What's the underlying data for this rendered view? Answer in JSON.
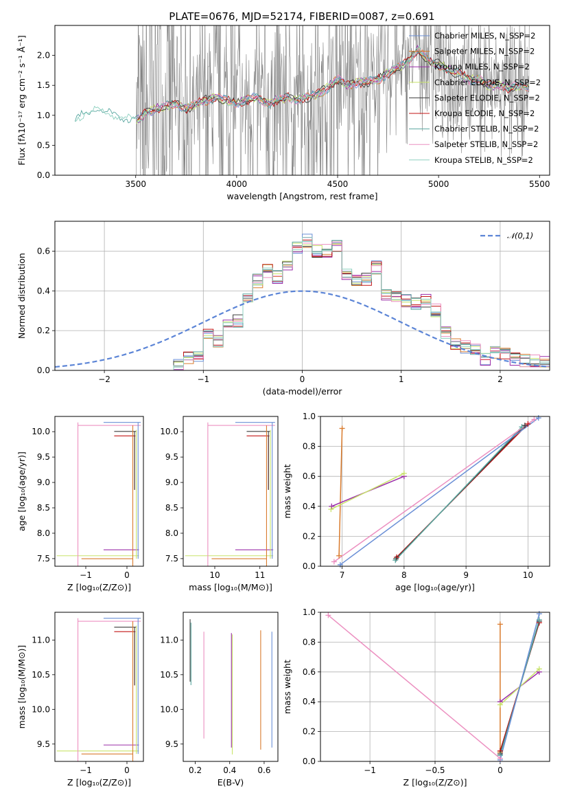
{
  "figure": {
    "title": "PLATE=0676, MJD=52174, FIBERID=0087, z=0.691"
  },
  "colors": {
    "grid": "#b0b0b0",
    "data": "#808080",
    "gaussian": "#5b84d6",
    "models": [
      "#6a8fd6",
      "#d97a2c",
      "#9a2ca8",
      "#c8e46a",
      "#3c3c3c",
      "#c21414",
      "#5aa7a0",
      "#ec8fc0",
      "#8dd0c0"
    ]
  },
  "chart_data": [
    {
      "id": "spectrum",
      "type": "line",
      "title": "PLATE=0676, MJD=52174, FIBERID=0087, z=0.691",
      "xlabel": "wavelength [Angstrom, rest frame]",
      "ylabel": "Flux [fλ10⁻¹⁷ erg cm⁻² s⁻¹ Å⁻¹]",
      "xlim": [
        3100,
        5550
      ],
      "ylim": [
        0,
        2.5
      ],
      "xticks": [
        3500,
        4000,
        4500,
        5000,
        5500
      ],
      "yticks": [
        0.0,
        0.5,
        1.0,
        1.5,
        2.0
      ],
      "legend_position": "upper-right",
      "series": [
        {
          "name": "Chabrier MILES, N_SSP=2"
        },
        {
          "name": "Salpeter MILES, N_SSP=2"
        },
        {
          "name": "Kroupa MILES, N_SSP=2"
        },
        {
          "name": "Chabrier ELODIE, N_SSP=2"
        },
        {
          "name": "Salpeter ELODIE, N_SSP=2"
        },
        {
          "name": "Kroupa ELODIE, N_SSP=2"
        },
        {
          "name": "Chabrier STELIB, N_SSP=2"
        },
        {
          "name": "Salpeter STELIB, N_SSP=2"
        },
        {
          "name": "Kroupa STELIB, N_SSP=2"
        }
      ],
      "model_curve": {
        "x": [
          3200,
          3250,
          3300,
          3350,
          3400,
          3450,
          3500,
          3550,
          3600,
          3650,
          3700,
          3750,
          3800,
          3850,
          3900,
          3950,
          4000,
          4050,
          4100,
          4150,
          4200,
          4250,
          4300,
          4350,
          4400,
          4450,
          4500,
          4550,
          4600,
          4650,
          4700,
          4750,
          4800,
          4850,
          4900,
          4950,
          5000,
          5050,
          5100,
          5150,
          5200,
          5250,
          5300,
          5350,
          5400,
          5450
        ],
        "y": [
          0.9,
          1.05,
          1.1,
          1.05,
          1.0,
          0.95,
          0.9,
          1.05,
          1.1,
          1.15,
          1.2,
          1.1,
          1.2,
          1.25,
          1.3,
          1.25,
          1.2,
          1.25,
          1.3,
          1.2,
          1.25,
          1.3,
          1.25,
          1.3,
          1.35,
          1.45,
          1.6,
          1.5,
          1.55,
          1.55,
          1.6,
          1.7,
          1.8,
          1.9,
          2.1,
          1.9,
          1.85,
          1.75,
          1.7,
          1.6,
          1.6,
          1.5,
          1.5,
          1.45,
          1.5,
          1.45
        ]
      },
      "data_start": 3500
    },
    {
      "id": "residuals",
      "type": "line",
      "xlabel": "(data-model)/error",
      "ylabel": "Normed distribution",
      "xlim": [
        -2.5,
        2.5
      ],
      "ylim": [
        0,
        0.75
      ],
      "xticks": [
        -2,
        -1,
        0,
        1,
        2
      ],
      "yticks": [
        0.0,
        0.2,
        0.4,
        0.6
      ],
      "legend": "𝒩(0,1)",
      "legend_position": "upper-right",
      "bin_edges": [
        -1.3,
        -1.2,
        -1.1,
        -1.0,
        -0.9,
        -0.8,
        -0.7,
        -0.6,
        -0.5,
        -0.4,
        -0.3,
        -0.2,
        -0.1,
        0.0,
        0.1,
        0.2,
        0.3,
        0.4,
        0.5,
        0.6,
        0.7,
        0.8,
        0.9,
        1.0,
        1.1,
        1.2,
        1.3,
        1.4,
        1.5,
        1.6,
        1.7,
        1.8,
        1.9,
        2.0,
        2.1,
        2.2,
        2.3,
        2.4,
        2.5
      ],
      "values": [
        0.02,
        0.06,
        0.07,
        0.18,
        0.15,
        0.22,
        0.25,
        0.35,
        0.45,
        0.5,
        0.47,
        0.53,
        0.62,
        0.65,
        0.6,
        0.6,
        0.63,
        0.48,
        0.45,
        0.46,
        0.52,
        0.38,
        0.37,
        0.35,
        0.33,
        0.35,
        0.3,
        0.19,
        0.14,
        0.12,
        0.11,
        0.06,
        0.09,
        0.08,
        0.06,
        0.05,
        0.05,
        0.04
      ]
    },
    {
      "id": "age-vs-z",
      "type": "scatter",
      "xlabel": "Z [log₁₀(Z/Z⊙)]",
      "ylabel": "age  [log₁₀(age/yr)]",
      "xlim": [
        -1.75,
        0.4
      ],
      "ylim": [
        7.35,
        10.3
      ],
      "xticks": [
        -1,
        0
      ],
      "yticks": [
        7.5,
        8.0,
        8.5,
        9.0,
        9.5,
        10.0
      ]
    },
    {
      "id": "age-vs-mass",
      "type": "scatter",
      "xlabel": "mass [log₁₀(M/M⊙)]",
      "xlim": [
        9.3,
        11.4
      ],
      "ylim": [
        7.35,
        10.3
      ],
      "xticks": [
        10,
        11
      ],
      "yticks": [
        7.5,
        8.0,
        8.5,
        9.0,
        9.5,
        10.0
      ]
    },
    {
      "id": "weight-vs-age",
      "type": "line",
      "xlabel": "age  [log₁₀(age/yr)]",
      "ylabel": "mass weight",
      "xlim": [
        6.65,
        10.35
      ],
      "ylim": [
        0,
        1
      ],
      "xticks": [
        7,
        8,
        9,
        10
      ],
      "yticks": [
        0.0,
        0.2,
        0.4,
        0.6,
        0.8,
        1.0
      ],
      "series": [
        {
          "color_index": 1,
          "x": [
            6.95,
            7.0
          ],
          "y": [
            0.07,
            0.92
          ]
        },
        {
          "color_index": 2,
          "x": [
            6.83,
            8.0
          ],
          "y": [
            0.4,
            0.6
          ]
        },
        {
          "color_index": 3,
          "x": [
            6.82,
            8.0
          ],
          "y": [
            0.38,
            0.62
          ]
        },
        {
          "color_index": 5,
          "x": [
            7.88,
            10.0
          ],
          "y": [
            0.06,
            0.95
          ]
        },
        {
          "color_index": 4,
          "x": [
            7.87,
            9.95
          ],
          "y": [
            0.05,
            0.94
          ]
        },
        {
          "color_index": 6,
          "x": [
            7.86,
            9.9
          ],
          "y": [
            0.04,
            0.93
          ]
        },
        {
          "color_index": 0,
          "x": [
            6.97,
            10.17
          ],
          "y": [
            0.01,
            0.99
          ]
        },
        {
          "color_index": 7,
          "x": [
            6.87,
            10.1
          ],
          "y": [
            0.03,
            0.98
          ]
        }
      ]
    },
    {
      "id": "mass-vs-z",
      "type": "scatter",
      "xlabel": "Z [log₁₀(Z/Z⊙)]",
      "ylabel": "mass [log₁₀(M/M⊙)]",
      "xlim": [
        -1.75,
        0.4
      ],
      "ylim": [
        9.25,
        11.4
      ],
      "xticks": [
        -1,
        0
      ],
      "yticks": [
        9.5,
        10.0,
        10.5,
        11.0
      ]
    },
    {
      "id": "mass-vs-ebv",
      "type": "scatter",
      "xlabel": "E(B-V)",
      "xlim": [
        0.13,
        0.68
      ],
      "ylim": [
        9.25,
        11.4
      ],
      "xticks": [
        0.2,
        0.4,
        0.6
      ],
      "yticks": [
        9.5,
        10.0,
        10.5,
        11.0
      ],
      "segments": [
        {
          "color_index": 4,
          "x": 0.17,
          "y": [
            10.4,
            11.3
          ]
        },
        {
          "color_index": 6,
          "x": 0.175,
          "y": [
            10.35,
            11.25
          ]
        },
        {
          "color_index": 7,
          "x": 0.25,
          "y": [
            9.58,
            11.12
          ]
        },
        {
          "color_index": 2,
          "x": 0.41,
          "y": [
            9.45,
            11.1
          ]
        },
        {
          "color_index": 3,
          "x": 0.415,
          "y": [
            9.35,
            11.08
          ]
        },
        {
          "color_index": 1,
          "x": 0.58,
          "y": [
            9.42,
            11.14
          ]
        },
        {
          "color_index": 0,
          "x": 0.645,
          "y": [
            9.45,
            11.12
          ]
        }
      ]
    },
    {
      "id": "weight-vs-z",
      "type": "line",
      "xlabel": "Z [log₁₀(Z/Z⊙)]",
      "ylabel": "mass weight",
      "xlim": [
        -1.38,
        0.38
      ],
      "ylim": [
        0,
        1
      ],
      "xticks": [
        -1.0,
        -0.5,
        0.0
      ],
      "yticks": [
        0.0,
        0.2,
        0.4,
        0.6,
        0.8,
        1.0
      ],
      "series": [
        {
          "color_index": 1,
          "x": [
            0.0,
            0.0
          ],
          "y": [
            0.06,
            0.92
          ]
        },
        {
          "color_index": 2,
          "x": [
            0.0,
            0.3
          ],
          "y": [
            0.4,
            0.6
          ]
        },
        {
          "color_index": 3,
          "x": [
            0.0,
            0.3
          ],
          "y": [
            0.38,
            0.62
          ]
        },
        {
          "color_index": 5,
          "x": [
            0.0,
            0.3
          ],
          "y": [
            0.07,
            0.93
          ]
        },
        {
          "color_index": 4,
          "x": [
            0.0,
            0.3
          ],
          "y": [
            0.05,
            0.94
          ]
        },
        {
          "color_index": 6,
          "x": [
            0.0,
            0.3
          ],
          "y": [
            0.04,
            0.95
          ]
        },
        {
          "color_index": 0,
          "x": [
            0.0,
            0.3
          ],
          "y": [
            0.01,
            0.99
          ]
        },
        {
          "color_index": 7,
          "x": [
            -1.32,
            0.0
          ],
          "y": [
            0.98,
            0.02
          ]
        }
      ]
    }
  ]
}
